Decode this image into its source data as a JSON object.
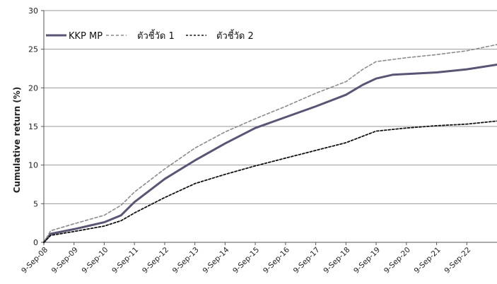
{
  "chart_data": {
    "type": "line",
    "title": "",
    "xlabel": "",
    "ylabel": "Cumulative return (%)",
    "ylim": [
      0,
      30
    ],
    "yticks": [
      0,
      5,
      10,
      15,
      20,
      25,
      30
    ],
    "grid": "horizontal",
    "legend_position": "top-left",
    "categories": [
      "9-Sep-08",
      "9-Sep-09",
      "9-Sep-10",
      "9-Sep-11",
      "9-Sep-12",
      "9-Sep-13",
      "9-Sep-14",
      "9-Sep-15",
      "9-Sep-16",
      "9-Sep-17",
      "9-Sep-18",
      "9-Sep-19",
      "9-Sep-20",
      "9-Sep-21",
      "9-Sep-22"
    ],
    "x_end": "2023-09-09",
    "series": [
      {
        "name": "KKP MP",
        "color": "#5a5475",
        "style": "solid",
        "points": [
          [
            "2008-09-09",
            0
          ],
          [
            "2008-12-01",
            1.1
          ],
          [
            "2009-09-09",
            1.7
          ],
          [
            "2010-09-09",
            2.6
          ],
          [
            "2011-04-01",
            3.5
          ],
          [
            "2011-09-09",
            5.2
          ],
          [
            "2012-09-09",
            8.2
          ],
          [
            "2013-09-09",
            10.6
          ],
          [
            "2014-09-09",
            12.8
          ],
          [
            "2015-09-09",
            14.8
          ],
          [
            "2016-09-09",
            16.2
          ],
          [
            "2017-09-09",
            17.6
          ],
          [
            "2018-09-09",
            19.1
          ],
          [
            "2019-04-01",
            20.4
          ],
          [
            "2019-09-09",
            21.2
          ],
          [
            "2020-04-01",
            21.7
          ],
          [
            "2021-09-09",
            22.0
          ],
          [
            "2022-09-09",
            22.4
          ],
          [
            "2023-09-09",
            23.0
          ]
        ]
      },
      {
        "name": "ตัวชี้วัด 1",
        "color": "#8c8c8c",
        "style": "dashed",
        "points": [
          [
            "2008-09-09",
            0
          ],
          [
            "2008-12-01",
            1.5
          ],
          [
            "2009-09-09",
            2.4
          ],
          [
            "2010-09-09",
            3.5
          ],
          [
            "2011-04-01",
            4.8
          ],
          [
            "2011-09-09",
            6.5
          ],
          [
            "2012-09-09",
            9.5
          ],
          [
            "2013-09-09",
            12.2
          ],
          [
            "2014-09-09",
            14.3
          ],
          [
            "2015-09-09",
            16.0
          ],
          [
            "2016-09-09",
            17.6
          ],
          [
            "2017-09-09",
            19.3
          ],
          [
            "2018-09-09",
            20.8
          ],
          [
            "2019-04-01",
            22.4
          ],
          [
            "2019-09-09",
            23.4
          ],
          [
            "2020-09-09",
            23.9
          ],
          [
            "2021-09-09",
            24.3
          ],
          [
            "2022-09-09",
            24.8
          ],
          [
            "2023-09-09",
            25.6
          ]
        ]
      },
      {
        "name": "ตัวชี้วัด 2",
        "color": "#111111",
        "style": "dashed",
        "points": [
          [
            "2008-09-09",
            0
          ],
          [
            "2008-12-01",
            0.9
          ],
          [
            "2009-09-09",
            1.4
          ],
          [
            "2010-09-09",
            2.1
          ],
          [
            "2011-04-01",
            2.8
          ],
          [
            "2011-09-09",
            3.8
          ],
          [
            "2012-09-09",
            5.8
          ],
          [
            "2013-09-09",
            7.6
          ],
          [
            "2014-09-09",
            8.8
          ],
          [
            "2015-09-09",
            9.9
          ],
          [
            "2016-09-09",
            10.9
          ],
          [
            "2017-09-09",
            11.9
          ],
          [
            "2018-09-09",
            12.9
          ],
          [
            "2019-09-09",
            14.4
          ],
          [
            "2020-09-09",
            14.8
          ],
          [
            "2021-09-09",
            15.1
          ],
          [
            "2022-09-09",
            15.3
          ],
          [
            "2023-09-09",
            15.7
          ]
        ]
      }
    ]
  }
}
